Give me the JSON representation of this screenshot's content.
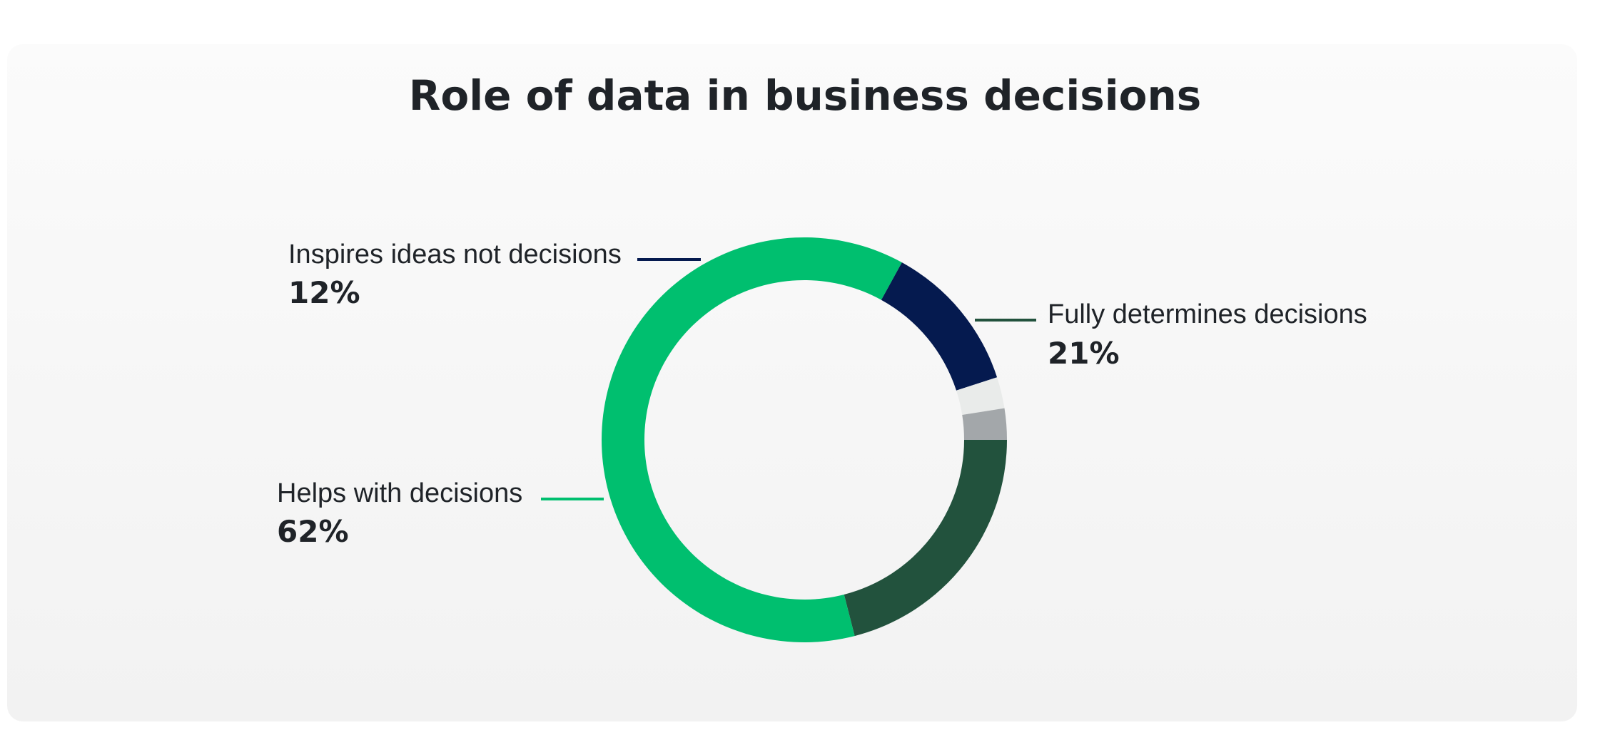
{
  "chart_data": {
    "type": "pie",
    "title": "Role of data in business decisions",
    "slices": [
      {
        "key": "fully",
        "label": "Fully determines decisions",
        "value": 21,
        "value_label": "21%",
        "color": "#22523d",
        "labeled": true
      },
      {
        "key": "helps",
        "label": "Helps with decisions",
        "value": 62,
        "value_label": "62%",
        "color": "#00bf6f",
        "labeled": true
      },
      {
        "key": "inspires",
        "label": "Inspires ideas not decisions",
        "value": 12,
        "value_label": "12%",
        "color": "#051a4f",
        "labeled": true
      },
      {
        "key": "other1",
        "label": "",
        "value": 2.5,
        "value_label": "",
        "color": "#e9ebea",
        "labeled": false
      },
      {
        "key": "other2",
        "label": "",
        "value": 2.5,
        "value_label": "",
        "color": "#a3a7aa",
        "labeled": false
      }
    ],
    "legend": "callouts"
  }
}
